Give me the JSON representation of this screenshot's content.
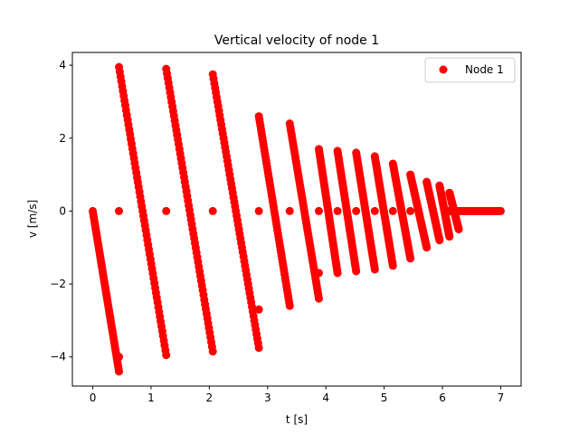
{
  "chart_data": {
    "type": "scatter",
    "title": "Vertical velocity of node 1",
    "xlabel": "t [s]",
    "ylabel": "v [m/s]",
    "xlim": [
      -0.35,
      7.35
    ],
    "ylim": [
      -4.8,
      4.35
    ],
    "xticks": [
      0,
      1,
      2,
      3,
      4,
      5,
      6,
      7
    ],
    "yticks": [
      -4,
      -2,
      0,
      2,
      4
    ],
    "grid": false,
    "legend_position": "top-right",
    "marker_color": "#ff0000",
    "series": [
      {
        "name": "Node 1",
        "color": "#ff0000",
        "marker": "circle",
        "streaks": [
          {
            "t_start": 0.0,
            "v_start": 0.0,
            "t_end": 0.45,
            "v_end": -4.4
          },
          {
            "t_start": 0.45,
            "v_start": 3.95,
            "t_end": 1.26,
            "v_end": -3.95
          },
          {
            "t_start": 1.26,
            "v_start": 3.9,
            "t_end": 2.06,
            "v_end": -3.85
          },
          {
            "t_start": 2.06,
            "v_start": 3.75,
            "t_end": 2.85,
            "v_end": -3.75
          },
          {
            "t_start": 2.85,
            "v_start": 2.6,
            "t_end": 3.38,
            "v_end": -2.6
          },
          {
            "t_start": 3.38,
            "v_start": 2.4,
            "t_end": 3.88,
            "v_end": -2.4
          },
          {
            "t_start": 3.88,
            "v_start": 1.7,
            "t_end": 4.2,
            "v_end": -1.7
          },
          {
            "t_start": 4.2,
            "v_start": 1.65,
            "t_end": 4.52,
            "v_end": -1.65
          },
          {
            "t_start": 4.52,
            "v_start": 1.6,
            "t_end": 4.84,
            "v_end": -1.6
          },
          {
            "t_start": 4.84,
            "v_start": 1.5,
            "t_end": 5.15,
            "v_end": -1.5
          },
          {
            "t_start": 5.15,
            "v_start": 1.3,
            "t_end": 5.45,
            "v_end": -1.3
          },
          {
            "t_start": 5.45,
            "v_start": 1.0,
            "t_end": 5.73,
            "v_end": -1.0
          },
          {
            "t_start": 5.73,
            "v_start": 0.8,
            "t_end": 5.95,
            "v_end": -0.8
          },
          {
            "t_start": 5.95,
            "v_start": 0.7,
            "t_end": 6.12,
            "v_end": -0.7
          },
          {
            "t_start": 6.12,
            "v_start": 0.5,
            "t_end": 6.28,
            "v_end": -0.5
          }
        ],
        "points": [
          {
            "t": 0.45,
            "v": 0.0
          },
          {
            "t": 1.26,
            "v": 0.0
          },
          {
            "t": 2.06,
            "v": 0.0
          },
          {
            "t": 2.85,
            "v": 0.0
          },
          {
            "t": 3.38,
            "v": 0.0
          },
          {
            "t": 3.88,
            "v": 0.0
          },
          {
            "t": 4.2,
            "v": 0.0
          },
          {
            "t": 4.52,
            "v": 0.0
          },
          {
            "t": 4.84,
            "v": 0.0
          },
          {
            "t": 5.15,
            "v": 0.0
          },
          {
            "t": 5.45,
            "v": 0.0
          },
          {
            "t": 2.85,
            "v": -2.7
          },
          {
            "t": 3.88,
            "v": -1.7
          },
          {
            "t": 0.45,
            "v": -4.0
          }
        ],
        "plateau": {
          "t_start": 6.1,
          "t_end": 7.0,
          "v": 0.0
        }
      }
    ]
  }
}
